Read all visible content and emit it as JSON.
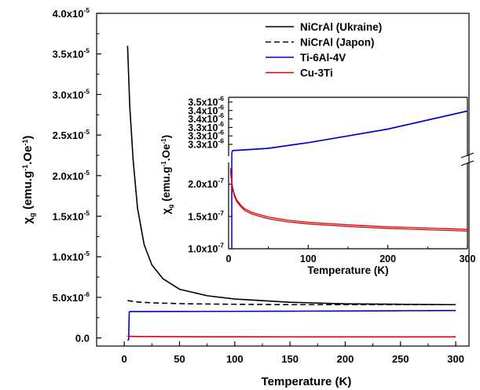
{
  "chart_data": [
    {
      "type": "line",
      "role": "main",
      "xlabel": "Temperature (K)",
      "ylabel": "χg (emu.g-1.Oe-1)",
      "xlim": [
        -25,
        312
      ],
      "ylim": [
        -1e-06,
        4e-05
      ],
      "x_ticks": [
        "0",
        "50",
        "100",
        "150",
        "200",
        "250",
        "300"
      ],
      "y_ticks": [
        {
          "value": 0,
          "mant": "0.0",
          "exp": ""
        },
        {
          "value": 5e-06,
          "mant": "5.0x10",
          "exp": "-6"
        },
        {
          "value": 1e-05,
          "mant": "1.0x10",
          "exp": "-5"
        },
        {
          "value": 1.5e-05,
          "mant": "1.5x10",
          "exp": "-5"
        },
        {
          "value": 2e-05,
          "mant": "2.0x10",
          "exp": "-5"
        },
        {
          "value": 2.5e-05,
          "mant": "2.5x10",
          "exp": "-5"
        },
        {
          "value": 3e-05,
          "mant": "3.0x10",
          "exp": "-5"
        },
        {
          "value": 3.5e-05,
          "mant": "3.5x10",
          "exp": "-5"
        },
        {
          "value": 4e-05,
          "mant": "4.0x10",
          "exp": "-5"
        }
      ],
      "legend_position": "top-right",
      "series": [
        {
          "name": "NiCrAl (Ukraine)",
          "color": "#000000",
          "dash": "solid",
          "x": [
            3,
            5,
            8,
            12,
            18,
            25,
            35,
            50,
            75,
            100,
            150,
            200,
            250,
            300
          ],
          "y": [
            3.6e-05,
            2.85e-05,
            2.2e-05,
            1.6e-05,
            1.15e-05,
            9e-06,
            7.3e-06,
            6e-06,
            5.2e-06,
            4.8e-06,
            4.4e-06,
            4.2e-06,
            4.15e-06,
            4.1e-06
          ]
        },
        {
          "name": "NiCrAl (Japon)",
          "color": "#000000",
          "dash": "dashed",
          "x": [
            3,
            8,
            15,
            30,
            60,
            100,
            150,
            200,
            250,
            300
          ],
          "y": [
            4.6e-06,
            4.5e-06,
            4.4e-06,
            4.3e-06,
            4.2e-06,
            4.15e-06,
            4.1e-06,
            4.1e-06,
            4.1e-06,
            4.1e-06
          ]
        },
        {
          "name": "Ti-6Al-4V",
          "color": "#0000cc",
          "dash": "solid",
          "x": [
            3,
            4,
            4.5,
            5,
            10,
            50,
            100,
            150,
            200,
            250,
            300
          ],
          "y": [
            -3e-07,
            -2e-07,
            3.2e-06,
            3.25e-06,
            3.25e-06,
            3.26e-06,
            3.28e-06,
            3.3e-06,
            3.32e-06,
            3.35e-06,
            3.38e-06
          ]
        },
        {
          "name": "Cu-3Ti",
          "color": "#dd0000",
          "dash": "solid",
          "x": [
            3,
            4,
            10,
            50,
            100,
            150,
            200,
            250,
            300
          ],
          "y": [
            2.5e-07,
            2e-07,
            1.8e-07,
            1.5e-07,
            1.4e-07,
            1.35e-07,
            1.32e-07,
            1.3e-07,
            1.3e-07
          ]
        }
      ]
    },
    {
      "type": "line",
      "role": "inset",
      "xlabel": "Temperature (K)",
      "ylabel": "χg (emu.g-1.Oe-1)",
      "xlim": [
        0,
        300
      ],
      "x_ticks": [
        "0",
        "100",
        "200",
        "300"
      ],
      "axis_break": true,
      "upper_ylim": [
        3.25e-06,
        3.5e-06
      ],
      "lower_ylim": [
        1e-07,
        2.3e-07
      ],
      "upper_y_ticks": [
        {
          "value": 3.3e-06,
          "mant": "3.3x10",
          "exp": "-6"
        },
        {
          "value": 3.3e-06,
          "mant": "3.3x10",
          "exp": "-6"
        },
        {
          "value": 3.3e-06,
          "mant": "3.3x10",
          "exp": "-6"
        },
        {
          "value": 3.4e-06,
          "mant": "3.4x10",
          "exp": "-6"
        },
        {
          "value": 3.4e-06,
          "mant": "3.4x10",
          "exp": "-6"
        },
        {
          "value": 3.5e-06,
          "mant": "3.5x10",
          "exp": "-6"
        }
      ],
      "lower_y_ticks": [
        {
          "value": 1e-07,
          "mant": "1.0x10",
          "exp": "-7"
        },
        {
          "value": 1.5e-07,
          "mant": "1.5x10",
          "exp": "-7"
        },
        {
          "value": 2e-07,
          "mant": "2.0x10",
          "exp": "-7"
        }
      ],
      "series": [
        {
          "name": "Ti-6Al-4V",
          "color": "#0000cc",
          "x": [
            4,
            5,
            20,
            50,
            100,
            150,
            200,
            250,
            300
          ],
          "y": [
            3.255e-06,
            3.265e-06,
            3.268e-06,
            3.275e-06,
            3.3e-06,
            3.33e-06,
            3.36e-06,
            3.4e-06,
            3.44e-06
          ]
        },
        {
          "name": "Cu-3Ti",
          "color": "#dd0000",
          "x": [
            2.5,
            3,
            4,
            5,
            7,
            10,
            15,
            20,
            30,
            50,
            75,
            100,
            150,
            200,
            250,
            300
          ],
          "y": [
            2.25e-07,
            2.15e-07,
            2.05e-07,
            1.95e-07,
            1.85e-07,
            1.76e-07,
            1.68e-07,
            1.62e-07,
            1.56e-07,
            1.49e-07,
            1.44e-07,
            1.41e-07,
            1.37e-07,
            1.34e-07,
            1.32e-07,
            1.3e-07
          ]
        }
      ]
    }
  ]
}
